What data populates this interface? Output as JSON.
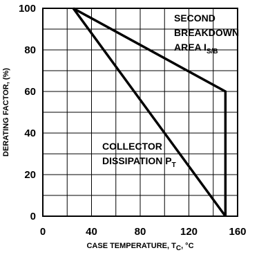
{
  "chart_data": {
    "type": "line",
    "title": "",
    "xlabel": "CASE TEMPERATURE, T",
    "xlabel_sub": "C",
    "xlabel_unit": ", °C",
    "ylabel": "DERATING FACTOR, (%)",
    "xlim": [
      0,
      160
    ],
    "ylim": [
      0,
      100
    ],
    "xticks": [
      0,
      40,
      80,
      120,
      160
    ],
    "yticks": [
      0,
      20,
      40,
      60,
      80,
      100
    ],
    "grid": true,
    "series": [
      {
        "name": "SECOND BREAKDOWN AREA I",
        "name_sub": "S/B",
        "label_lines": [
          "SECOND",
          "BREAKDOWN",
          "AREA I"
        ],
        "x": [
          25,
          150,
          150
        ],
        "y": [
          100,
          60,
          0
        ]
      },
      {
        "name": "COLLECTOR DISSIPATION P",
        "name_sub": "T",
        "label_lines": [
          "COLLECTOR",
          "DISSIPATION P"
        ],
        "x": [
          25,
          150
        ],
        "y": [
          100,
          0
        ]
      }
    ]
  }
}
